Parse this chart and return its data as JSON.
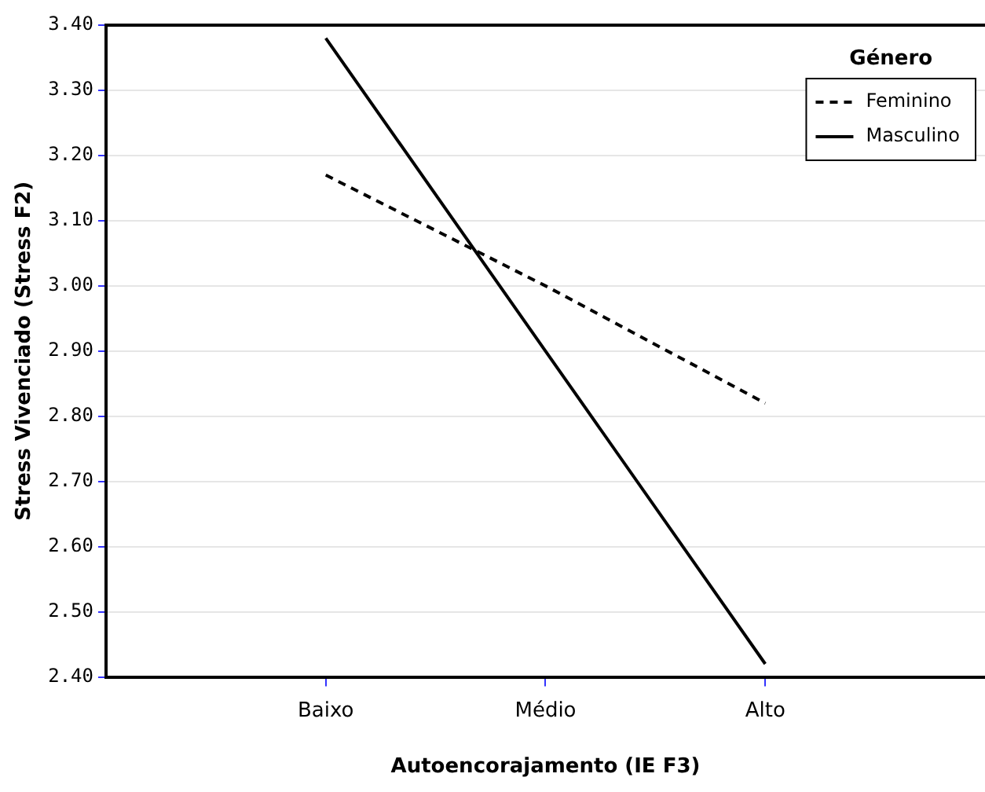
{
  "chart_data": {
    "type": "line",
    "xlabel": "Autoencorajamento (IE F3)",
    "ylabel": "Stress Vivenciado (Stress F2)",
    "legend_title": "Género",
    "categories": [
      "Baixo",
      "Médio",
      "Alto"
    ],
    "series": [
      {
        "name": "Feminino",
        "color": "#000000",
        "values": [
          3.17,
          3.0,
          2.82
        ],
        "line_style": "dashed"
      },
      {
        "name": "Masculino",
        "color": "#000000",
        "values": [
          3.38,
          2.9,
          2.42
        ],
        "line_style": "solid"
      }
    ],
    "ylim": [
      2.4,
      3.4
    ],
    "yticks": [
      {
        "value": 2.4,
        "label": "2.40"
      },
      {
        "value": 2.5,
        "label": "2.50"
      },
      {
        "value": 2.6,
        "label": "2.60"
      },
      {
        "value": 2.7,
        "label": "2.70"
      },
      {
        "value": 2.8,
        "label": "2.80"
      },
      {
        "value": 2.9,
        "label": "2.90"
      },
      {
        "value": 3.0,
        "label": "3.00"
      },
      {
        "value": 3.1,
        "label": "3.10"
      },
      {
        "value": 3.2,
        "label": "3.20"
      },
      {
        "value": 3.3,
        "label": "3.30"
      },
      {
        "value": 3.4,
        "label": "3.40"
      }
    ],
    "grid": "y",
    "legend": "top right",
    "marker": "none"
  }
}
